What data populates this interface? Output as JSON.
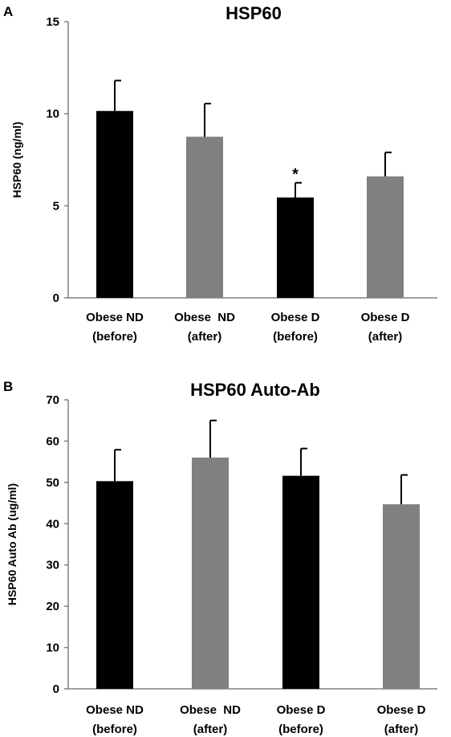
{
  "chart_data": [
    {
      "panel": "A",
      "type": "bar",
      "title": "HSP60",
      "ylabel": "HSP60 (ng/ml)",
      "xlabel": "",
      "ylim": [
        0,
        15
      ],
      "yticks": [
        0,
        5,
        10,
        15
      ],
      "grid": false,
      "categories": [
        [
          "Obese ND",
          "(before)"
        ],
        [
          "Obese  ND",
          "(after)"
        ],
        [
          "Obese D",
          "(before)"
        ],
        [
          "Obese D",
          "(after)"
        ]
      ],
      "values": [
        10.15,
        8.75,
        5.45,
        6.6
      ],
      "errors": [
        1.65,
        1.8,
        0.8,
        1.3
      ],
      "bar_colors": [
        "#000000",
        "#808080",
        "#000000",
        "#808080"
      ],
      "annotations": [
        {
          "category_index": 2,
          "text": "*"
        }
      ]
    },
    {
      "panel": "B",
      "type": "bar",
      "title": "HSP60 Auto-Ab",
      "ylabel": "HSP60 Auto Ab (ug/ml)",
      "xlabel": "",
      "ylim": [
        0,
        70
      ],
      "yticks": [
        0,
        10,
        20,
        30,
        40,
        50,
        60,
        70
      ],
      "grid": false,
      "categories": [
        [
          "Obese ND",
          "(before)"
        ],
        [
          "Obese  ND",
          "(after)"
        ],
        [
          "Obese D",
          "(before)"
        ],
        [
          "Obese D",
          "(after)"
        ]
      ],
      "values": [
        50.3,
        56.0,
        51.6,
        44.7
      ],
      "errors": [
        7.6,
        9.0,
        6.6,
        7.1
      ],
      "bar_colors": [
        "#000000",
        "#808080",
        "#000000",
        "#808080"
      ],
      "annotations": []
    }
  ]
}
